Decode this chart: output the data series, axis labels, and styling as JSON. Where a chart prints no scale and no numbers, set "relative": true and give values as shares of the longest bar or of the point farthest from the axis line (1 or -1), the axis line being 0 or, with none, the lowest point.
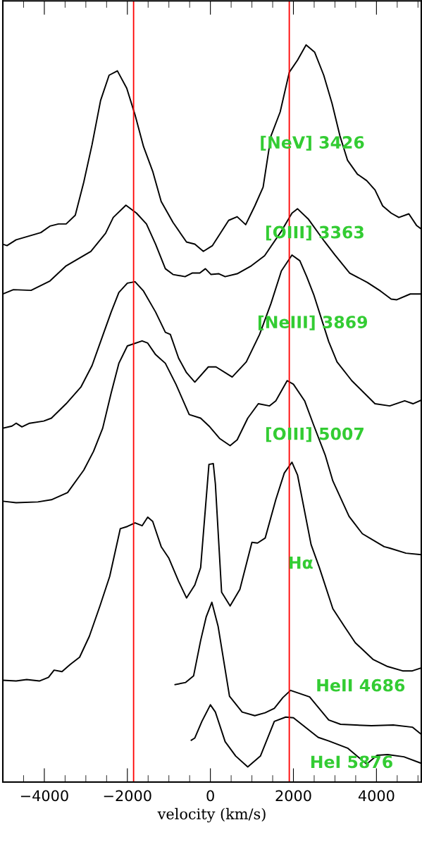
{
  "chart_data": {
    "type": "line",
    "relative": true,
    "xlabel": "velocity (km/s)",
    "xlim": [
      -5000,
      5080
    ],
    "xticks": [
      {
        "value": -4500,
        "label": null
      },
      -4000,
      {
        "value": -3500,
        "label": null
      },
      {
        "value": -3000,
        "label": null
      },
      {
        "value": -2500,
        "label": null
      },
      -2000,
      {
        "value": -1500,
        "label": null
      },
      {
        "value": -1000,
        "label": null
      },
      {
        "value": -500,
        "label": null
      },
      0,
      {
        "value": 500,
        "label": null
      },
      {
        "value": 1000,
        "label": null
      },
      {
        "value": 1500,
        "label": null
      },
      2000,
      {
        "value": 2500,
        "label": null
      },
      {
        "value": 3000,
        "label": null
      },
      {
        "value": 3500,
        "label": null
      },
      4000,
      {
        "value": 4500,
        "label": null
      },
      {
        "value": 5000,
        "label": null
      }
    ],
    "grid": false,
    "legend": false,
    "marker": "none",
    "line_style": "solid",
    "ref_lines": [
      {
        "axis": "x",
        "value": -1850,
        "color": "#ff0000"
      },
      {
        "axis": "x",
        "value": 1900,
        "color": "#ff0000"
      }
    ],
    "series": [
      {
        "name": "[NeV] 3426",
        "color": "#000000",
        "x": [
          -5000,
          -4900,
          -4680,
          -4085,
          -3865,
          -3660,
          -3475,
          -3255,
          -3050,
          -2850,
          -2645,
          -2440,
          -2240,
          -2015,
          -1815,
          -1610,
          -1390,
          -1185,
          -900,
          -575,
          -375,
          -170,
          50,
          440,
          645,
          850,
          1070,
          1270,
          1460,
          1680,
          1900,
          2100,
          2305,
          2510,
          2730,
          2930,
          3120,
          3305,
          3540,
          3765,
          3965,
          4150,
          4355,
          4540,
          4780,
          4965,
          5080
        ],
        "values": [
          0.724,
          0.722,
          0.73,
          0.74,
          0.749,
          0.752,
          0.752,
          0.764,
          0.81,
          0.862,
          0.923,
          0.958,
          0.964,
          0.94,
          0.903,
          0.859,
          0.825,
          0.783,
          0.754,
          0.727,
          0.724,
          0.714,
          0.722,
          0.757,
          0.762,
          0.751,
          0.777,
          0.803,
          0.874,
          0.907,
          0.962,
          0.979,
          1.0,
          0.99,
          0.958,
          0.919,
          0.874,
          0.84,
          0.821,
          0.812,
          0.799,
          0.777,
          0.767,
          0.761,
          0.766,
          0.75,
          0.745
        ]
      },
      {
        "name": "[OIII] 3363",
        "color": "#000000",
        "x": [
          -5000,
          -4745,
          -4320,
          -3865,
          -3475,
          -2880,
          -2525,
          -2340,
          -2035,
          -1780,
          -1540,
          -1320,
          -1085,
          -900,
          -610,
          -440,
          -255,
          -120,
          15,
          205,
          355,
          645,
          985,
          1305,
          1710,
          1965,
          2100,
          2355,
          2745,
          3000,
          3355,
          3780,
          4100,
          4355,
          4490,
          4815,
          5080
        ],
        "values": [
          0.655,
          0.661,
          0.66,
          0.673,
          0.694,
          0.714,
          0.739,
          0.761,
          0.778,
          0.767,
          0.752,
          0.724,
          0.69,
          0.682,
          0.679,
          0.684,
          0.684,
          0.69,
          0.682,
          0.683,
          0.679,
          0.683,
          0.694,
          0.708,
          0.742,
          0.767,
          0.773,
          0.759,
          0.728,
          0.709,
          0.684,
          0.671,
          0.659,
          0.648,
          0.647,
          0.655,
          0.655
        ]
      },
      {
        "name": "[NeIII] 3869",
        "color": "#000000",
        "x": [
          -5000,
          -4780,
          -4680,
          -4540,
          -4355,
          -4015,
          -3830,
          -3475,
          -3120,
          -2850,
          -2595,
          -2390,
          -2205,
          -2000,
          -1815,
          -1610,
          -1320,
          -1085,
          -965,
          -765,
          -575,
          -375,
          -50,
          135,
          525,
          865,
          1185,
          1460,
          1710,
          1965,
          2155,
          2320,
          2490,
          2850,
          3050,
          3405,
          3965,
          4320,
          4680,
          4880,
          5080
        ],
        "values": [
          0.469,
          0.472,
          0.476,
          0.471,
          0.476,
          0.479,
          0.483,
          0.503,
          0.526,
          0.556,
          0.597,
          0.63,
          0.657,
          0.67,
          0.672,
          0.659,
          0.63,
          0.602,
          0.599,
          0.566,
          0.546,
          0.533,
          0.554,
          0.554,
          0.54,
          0.561,
          0.599,
          0.642,
          0.687,
          0.709,
          0.701,
          0.679,
          0.654,
          0.589,
          0.561,
          0.535,
          0.503,
          0.5,
          0.507,
          0.503,
          0.508
        ]
      },
      {
        "name": "[OIII] 5007",
        "color": "#000000",
        "x": [
          -5000,
          -4680,
          -4155,
          -3830,
          -3440,
          -3050,
          -2815,
          -2595,
          -2390,
          -2205,
          -2000,
          -1645,
          -1510,
          -1320,
          -1085,
          -830,
          -510,
          -235,
          -15,
          220,
          475,
          645,
          900,
          1155,
          1425,
          1575,
          1850,
          2000,
          2270,
          2490,
          2765,
          2950,
          3340,
          3660,
          4185,
          4320,
          4710,
          5080
        ],
        "values": [
          0.368,
          0.366,
          0.367,
          0.37,
          0.38,
          0.411,
          0.437,
          0.469,
          0.518,
          0.559,
          0.583,
          0.59,
          0.587,
          0.571,
          0.559,
          0.53,
          0.488,
          0.483,
          0.471,
          0.455,
          0.445,
          0.453,
          0.483,
          0.503,
          0.5,
          0.507,
          0.535,
          0.53,
          0.507,
          0.473,
          0.432,
          0.396,
          0.347,
          0.323,
          0.305,
          0.303,
          0.296,
          0.294
        ]
      },
      {
        "name": "Hα",
        "color": "#000000",
        "x": [
          -5000,
          -4680,
          -4425,
          -4120,
          -3900,
          -3765,
          -3575,
          -3375,
          -3150,
          -2915,
          -2660,
          -2425,
          -2170,
          -2000,
          -1815,
          -1645,
          -1510,
          -1390,
          -1185,
          -1000,
          -765,
          -575,
          -375,
          -235,
          -35,
          70,
          120,
          270,
          475,
          710,
          1000,
          1135,
          1320,
          1575,
          1780,
          1965,
          2100,
          2425,
          2625,
          2950,
          3235,
          3490,
          3915,
          4270,
          4630,
          4865,
          5080
        ],
        "values": [
          0.12,
          0.119,
          0.121,
          0.119,
          0.124,
          0.134,
          0.132,
          0.142,
          0.152,
          0.181,
          0.223,
          0.264,
          0.33,
          0.333,
          0.338,
          0.334,
          0.346,
          0.34,
          0.305,
          0.289,
          0.257,
          0.234,
          0.252,
          0.276,
          0.419,
          0.42,
          0.392,
          0.242,
          0.223,
          0.246,
          0.311,
          0.31,
          0.317,
          0.37,
          0.407,
          0.422,
          0.404,
          0.308,
          0.276,
          0.219,
          0.194,
          0.172,
          0.149,
          0.139,
          0.133,
          0.133,
          0.137
        ]
      },
      {
        "name": "HeII 4686",
        "color": "#000000",
        "x": [
          -850,
          -595,
          -405,
          -235,
          -100,
          35,
          185,
          460,
          765,
          1070,
          1320,
          1540,
          1745,
          1930,
          2390,
          2850,
          3135,
          3880,
          4405,
          4865,
          5080
        ],
        "values": [
          0.114,
          0.117,
          0.126,
          0.175,
          0.208,
          0.228,
          0.195,
          0.098,
          0.076,
          0.071,
          0.075,
          0.081,
          0.096,
          0.106,
          0.097,
          0.065,
          0.059,
          0.057,
          0.058,
          0.055,
          0.045
        ]
      },
      {
        "name": "HeI 5876",
        "color": "#000000",
        "x": [
          -460,
          -375,
          -205,
          0,
          120,
          355,
          610,
          900,
          1205,
          1540,
          1815,
          2000,
          2595,
          2850,
          3305,
          3765,
          4015,
          4270,
          4660,
          5080
        ],
        "values": [
          0.037,
          0.04,
          0.063,
          0.086,
          0.076,
          0.035,
          0.015,
          0,
          0.015,
          0.063,
          0.069,
          0.068,
          0.041,
          0.036,
          0.026,
          0.004,
          0.016,
          0.017,
          0.014,
          0.005
        ]
      }
    ]
  }
}
